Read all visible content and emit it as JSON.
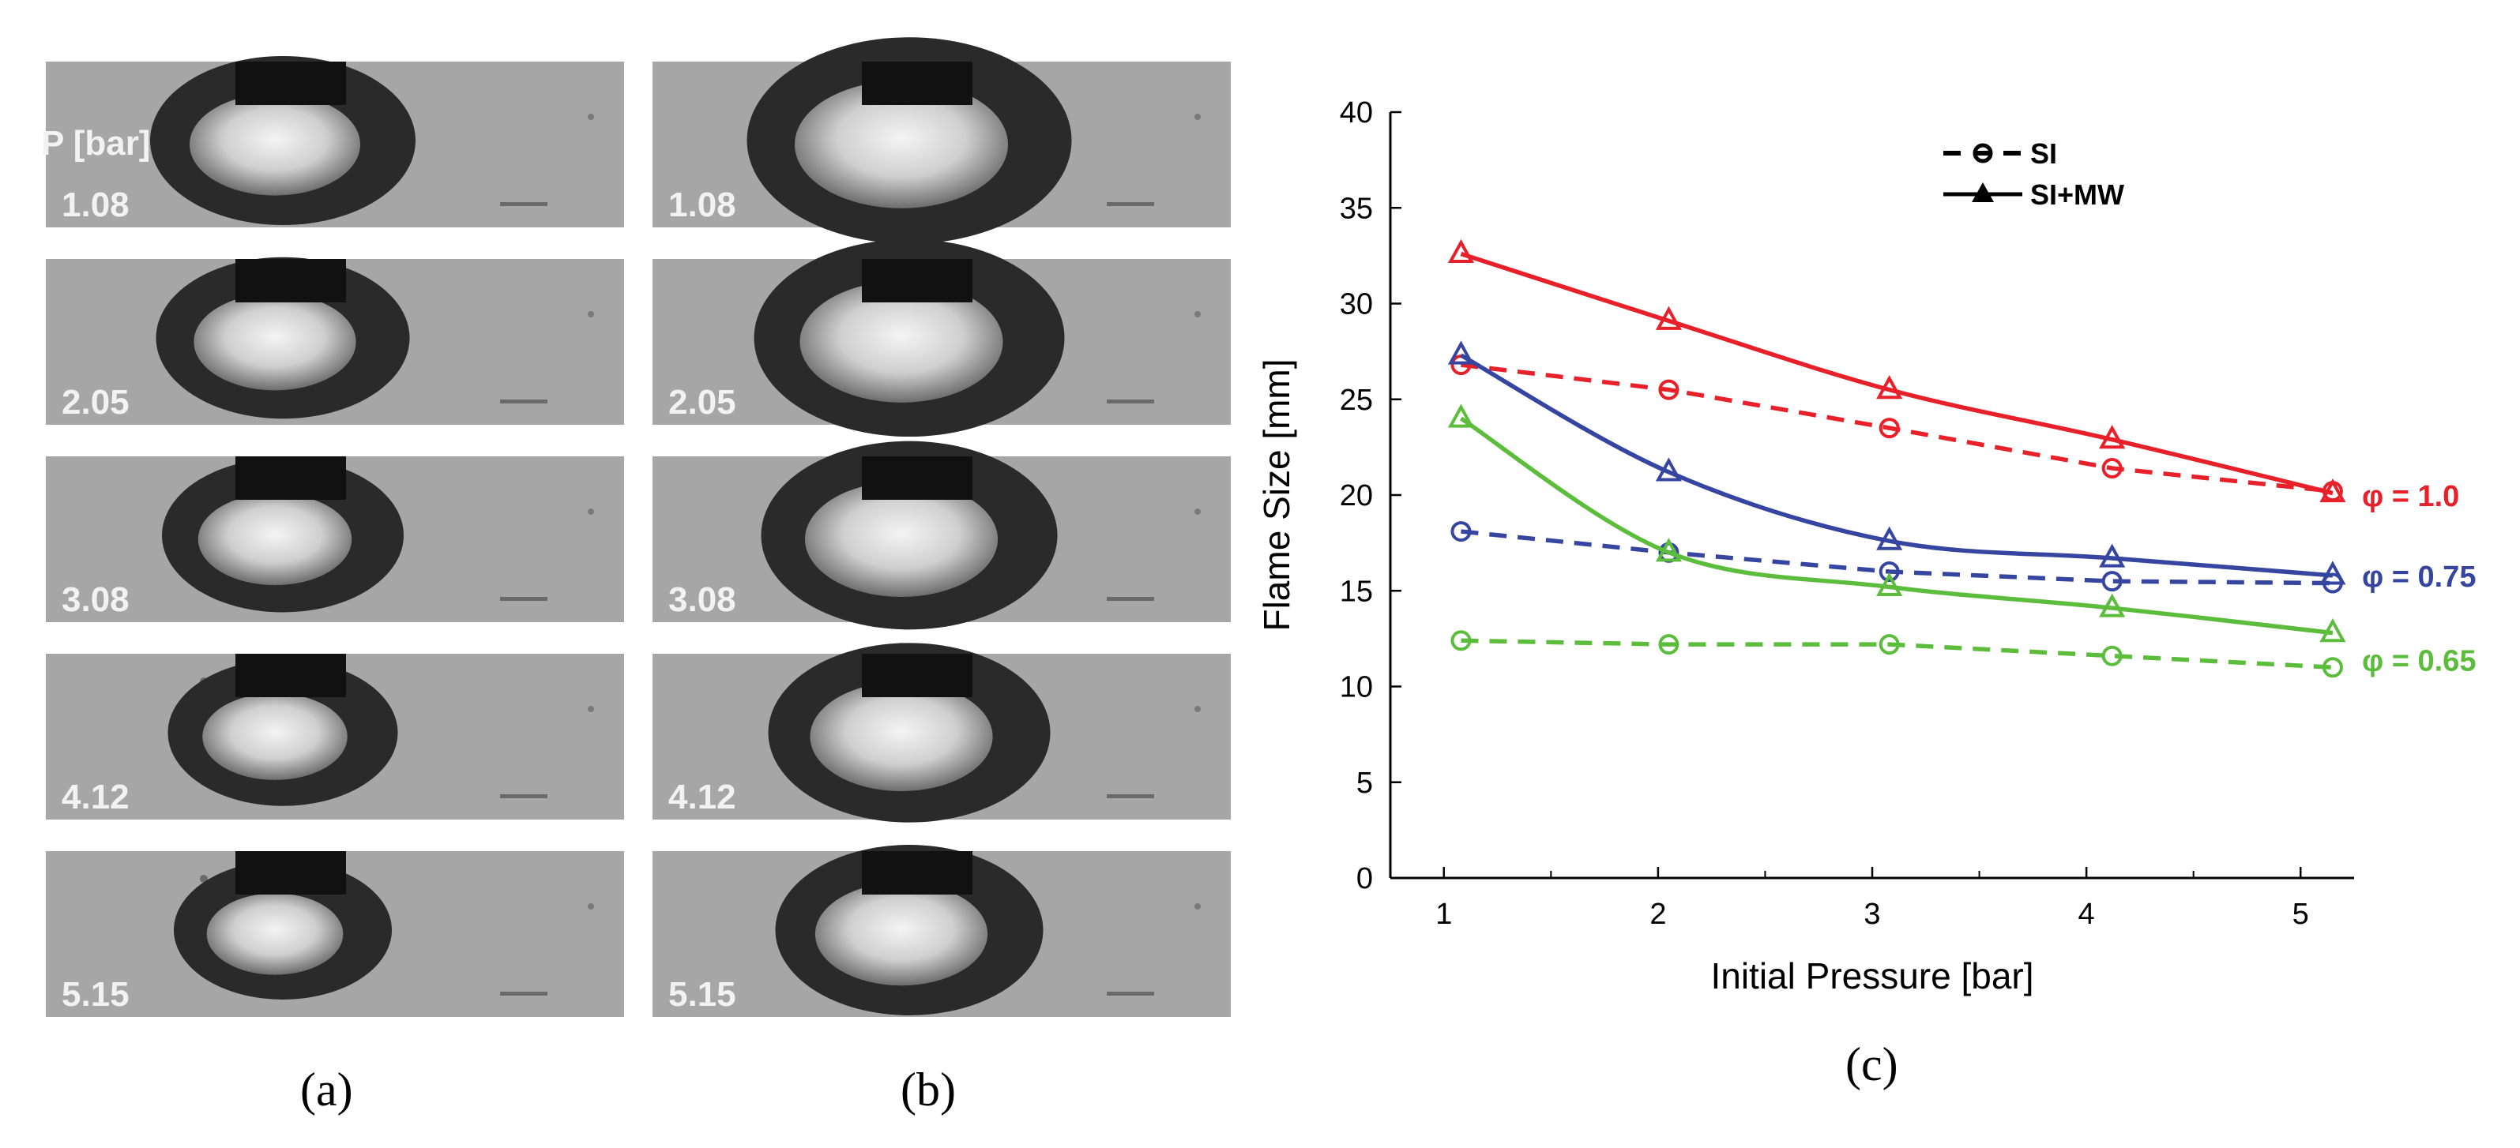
{
  "panels": {
    "left": {
      "header": "P [bar]",
      "pressures": [
        "1.08",
        "2.05",
        "3.08",
        "4.12",
        "5.15"
      ],
      "caption_a": "(a)",
      "caption_b": "(b)"
    },
    "chart_caption": "(c)"
  },
  "chart_data": {
    "type": "line",
    "title": "",
    "xlabel": "Initial Pressure [bar]",
    "ylabel": "Flame Size [mm]",
    "xlim": [
      0.75,
      5.25
    ],
    "ylim": [
      0,
      40
    ],
    "xticks": [
      1,
      2,
      3,
      4,
      5
    ],
    "yticks": [
      0,
      5,
      10,
      15,
      20,
      25,
      30,
      35,
      40
    ],
    "x": [
      1.08,
      2.05,
      3.08,
      4.12,
      5.15
    ],
    "legend": [
      {
        "label": "SI",
        "style": "dashed",
        "marker": "circle"
      },
      {
        "label": "SI+MW",
        "style": "solid",
        "marker": "triangle"
      }
    ],
    "series": [
      {
        "name": "SI φ = 1.0",
        "mode": "SI",
        "phi": "φ = 1.0",
        "color": "#e8202a",
        "values": [
          26.8,
          25.5,
          23.5,
          21.4,
          20.2
        ]
      },
      {
        "name": "SI+MW φ = 1.0",
        "mode": "SI+MW",
        "phi": "φ = 1.0",
        "color": "#e8202a",
        "values": [
          32.6,
          29.1,
          25.5,
          22.9,
          20.1
        ]
      },
      {
        "name": "SI φ = 0.75",
        "mode": "SI",
        "phi": "φ = 0.75",
        "color": "#3545a0",
        "values": [
          18.1,
          17.0,
          16.0,
          15.5,
          15.4
        ]
      },
      {
        "name": "SI+MW φ = 0.75",
        "mode": "SI+MW",
        "phi": "φ = 0.75",
        "color": "#3545a0",
        "values": [
          27.3,
          21.2,
          17.6,
          16.7,
          15.8
        ]
      },
      {
        "name": "SI φ = 0.65",
        "mode": "SI",
        "phi": "φ = 0.65",
        "color": "#5cbd3c",
        "values": [
          12.4,
          12.2,
          12.2,
          11.6,
          11.0
        ]
      },
      {
        "name": "SI+MW φ = 0.65",
        "mode": "SI+MW",
        "phi": "φ = 0.65",
        "color": "#5cbd3c",
        "values": [
          24.0,
          17.0,
          15.2,
          14.1,
          12.8
        ]
      }
    ],
    "phi_labels": [
      {
        "text": "φ = 1.0",
        "color": "#e8202a",
        "y": 20.0
      },
      {
        "text": "φ = 0.75",
        "color": "#3545a0",
        "y": 15.8
      },
      {
        "text": "φ = 0.65",
        "color": "#5cbd3c",
        "y": 11.4
      }
    ]
  }
}
